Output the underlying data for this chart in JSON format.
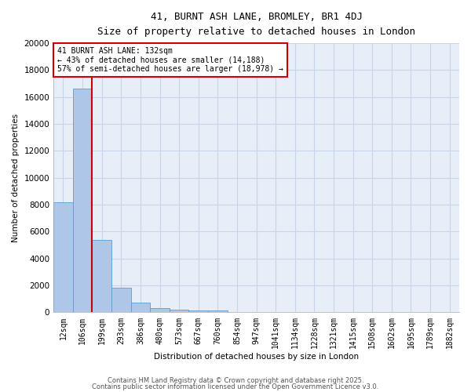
{
  "title1": "41, BURNT ASH LANE, BROMLEY, BR1 4DJ",
  "title2": "Size of property relative to detached houses in London",
  "xlabel": "Distribution of detached houses by size in London",
  "ylabel": "Number of detached properties",
  "bin_labels": [
    "12sqm",
    "106sqm",
    "199sqm",
    "293sqm",
    "386sqm",
    "480sqm",
    "573sqm",
    "667sqm",
    "760sqm",
    "854sqm",
    "947sqm",
    "1041sqm",
    "1134sqm",
    "1228sqm",
    "1321sqm",
    "1415sqm",
    "1508sqm",
    "1602sqm",
    "1695sqm",
    "1789sqm",
    "1882sqm"
  ],
  "bar_heights": [
    8200,
    16600,
    5400,
    1850,
    700,
    300,
    200,
    150,
    150,
    50,
    0,
    0,
    0,
    0,
    0,
    0,
    0,
    0,
    0,
    0,
    0
  ],
  "bar_color": "#aec6e8",
  "bar_edge_color": "#5b9bd5",
  "red_line_x": 1.5,
  "red_line_color": "#cc0000",
  "annotation_text": "41 BURNT ASH LANE: 132sqm\n← 43% of detached houses are smaller (14,188)\n57% of semi-detached houses are larger (18,978) →",
  "annotation_box_color": "#cc0000",
  "ylim": [
    0,
    20000
  ],
  "yticks": [
    0,
    2000,
    4000,
    6000,
    8000,
    10000,
    12000,
    14000,
    16000,
    18000,
    20000
  ],
  "grid_color": "#c8d4e8",
  "bg_color": "#e8eef8",
  "footer1": "Contains HM Land Registry data © Crown copyright and database right 2025.",
  "footer2": "Contains public sector information licensed under the Open Government Licence v3.0."
}
